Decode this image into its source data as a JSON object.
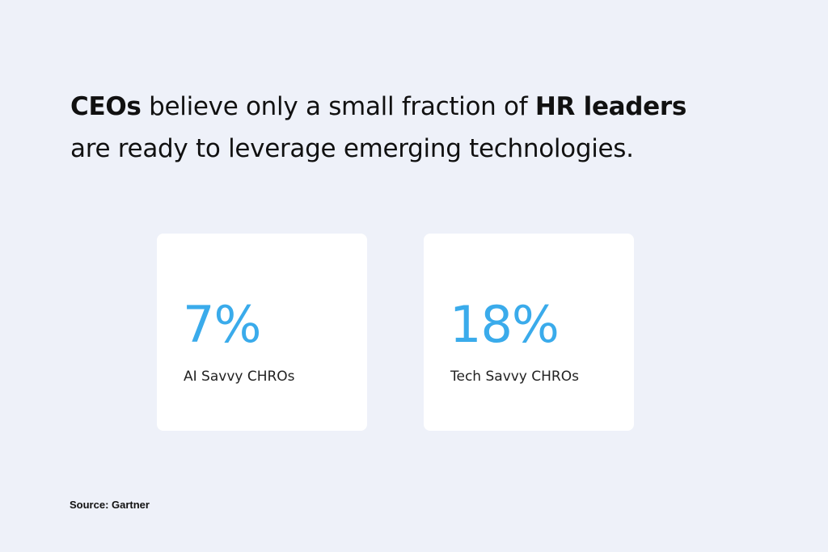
{
  "headline": {
    "line1_bold_1": "CEOs",
    "line1_mid": " believe only a small fraction of ",
    "line1_bold_2": "HR leaders",
    "line2": "are ready to leverage emerging technologies."
  },
  "cards": [
    {
      "value": "7%",
      "label": "AI Savvy CHROs"
    },
    {
      "value": "18%",
      "label": "Tech Savvy CHROs"
    }
  ],
  "source": "Source: Gartner",
  "colors": {
    "background": "#eef1f9",
    "card": "#ffffff",
    "accent": "#3aabeb",
    "text": "#111111"
  }
}
